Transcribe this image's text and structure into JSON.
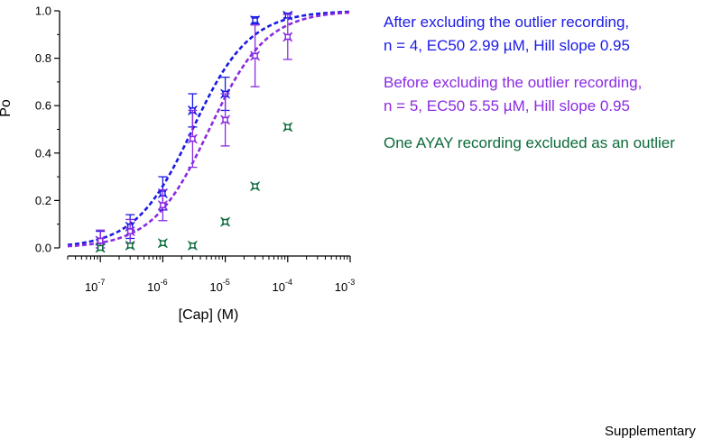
{
  "chart_data": {
    "type": "scatter",
    "xlabel": "[Cap] (M)",
    "ylabel": "Po",
    "xscale": "log",
    "xlim": [
      3e-08,
      0.001
    ],
    "ylim": [
      0,
      1.0
    ],
    "xticks": [
      {
        "value": 1e-07,
        "base": "10",
        "exp": "-7"
      },
      {
        "value": 1e-06,
        "base": "10",
        "exp": "-6"
      },
      {
        "value": 1e-05,
        "base": "10",
        "exp": "-5"
      },
      {
        "value": 0.0001,
        "base": "10",
        "exp": "-4"
      },
      {
        "value": 0.001,
        "base": "10",
        "exp": "-3"
      }
    ],
    "yticks": [
      "0.0",
      "0.2",
      "0.4",
      "0.6",
      "0.8",
      "1.0"
    ],
    "series": [
      {
        "key": "after",
        "color": "#1a1ae6",
        "x": [
          1e-07,
          3e-07,
          1e-06,
          3e-06,
          1e-05,
          3e-05,
          0.0001
        ],
        "y": [
          0.03,
          0.09,
          0.23,
          0.58,
          0.65,
          0.96,
          0.98
        ],
        "err": [
          0.04,
          0.05,
          0.07,
          0.07,
          0.07,
          0.015,
          0.01
        ],
        "fit": {
          "ec50": 2.99e-06,
          "hill": 0.95
        }
      },
      {
        "key": "before",
        "color": "#8a2be2",
        "x": [
          1e-07,
          3e-07,
          1e-06,
          3e-06,
          1e-05,
          3e-05,
          0.0001
        ],
        "y": [
          0.03,
          0.07,
          0.18,
          0.46,
          0.54,
          0.81,
          0.89
        ],
        "err": [
          0.045,
          0.05,
          0.065,
          0.12,
          0.11,
          0.13,
          0.095
        ],
        "fit": {
          "ec50": 5.55e-06,
          "hill": 0.95
        }
      },
      {
        "key": "outlier",
        "color": "#0b6b3a",
        "x": [
          1e-07,
          3e-07,
          1e-06,
          3e-06,
          1e-05,
          3e-05,
          0.0001
        ],
        "y": [
          0.0,
          0.01,
          0.02,
          0.01,
          0.11,
          0.26,
          0.51
        ]
      }
    ]
  },
  "legend": {
    "after": {
      "line1": "After excluding the outlier recording,",
      "line2": "n = 4, EC50 2.99 µM, Hill slope 0.95",
      "color": "#1a1ae6"
    },
    "before": {
      "line1": "Before excluding the outlier recording,",
      "line2": "n = 5, EC50 5.55 µM, Hill slope 0.95",
      "color": "#8a2be2"
    },
    "outlier": {
      "line1": "One AYAY recording excluded as an outlier",
      "color": "#0b6b3a"
    }
  },
  "footer": "Supplementary"
}
